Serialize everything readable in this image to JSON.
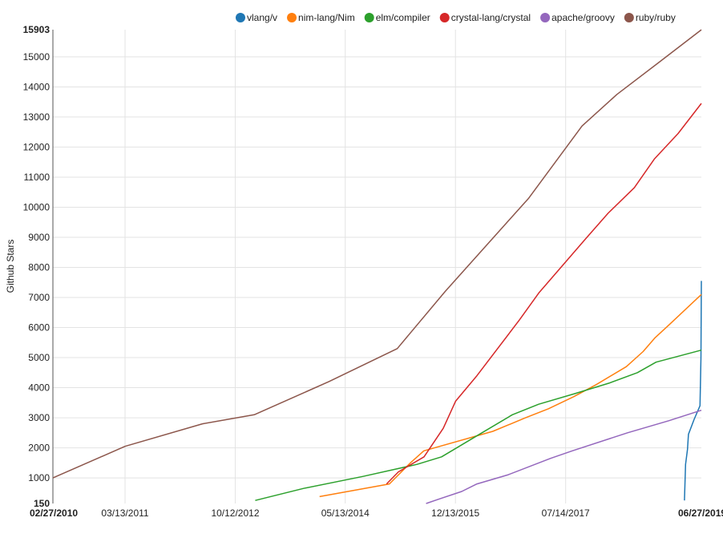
{
  "chart_data": {
    "type": "line",
    "xlabel": "",
    "ylabel": "Github Stars",
    "ylim": [
      150,
      15903
    ],
    "xlim": [
      "2010-02-27",
      "2019-06-27"
    ],
    "y_ticks": [
      {
        "value": 150,
        "label": "150",
        "bold": true
      },
      {
        "value": 1000,
        "label": "1000"
      },
      {
        "value": 2000,
        "label": "2000"
      },
      {
        "value": 3000,
        "label": "3000"
      },
      {
        "value": 4000,
        "label": "4000"
      },
      {
        "value": 5000,
        "label": "5000"
      },
      {
        "value": 6000,
        "label": "6000"
      },
      {
        "value": 7000,
        "label": "7000"
      },
      {
        "value": 8000,
        "label": "8000"
      },
      {
        "value": 9000,
        "label": "9000"
      },
      {
        "value": 10000,
        "label": "10000"
      },
      {
        "value": 11000,
        "label": "11000"
      },
      {
        "value": 12000,
        "label": "12000"
      },
      {
        "value": 13000,
        "label": "13000"
      },
      {
        "value": 14000,
        "label": "14000"
      },
      {
        "value": 15000,
        "label": "15000"
      },
      {
        "value": 15903,
        "label": "15903",
        "bold": true
      }
    ],
    "x_ticks": [
      {
        "value": "2010-02-27",
        "label": "02/27/2010",
        "bold": true
      },
      {
        "value": "2011-03-13",
        "label": "03/13/2011"
      },
      {
        "value": "2012-10-12",
        "label": "10/12/2012"
      },
      {
        "value": "2014-05-13",
        "label": "05/13/2014"
      },
      {
        "value": "2015-12-13",
        "label": "12/13/2015"
      },
      {
        "value": "2017-07-14",
        "label": "07/14/2017"
      },
      {
        "value": "2019-06-27",
        "label": "06/27/2019",
        "bold": true
      }
    ],
    "grid": true,
    "legend_position": "top",
    "series": [
      {
        "name": "vlang/v",
        "color": "#1f77b4",
        "points": [
          [
            "2019-03-30",
            250
          ],
          [
            "2019-04-05",
            1450
          ],
          [
            "2019-04-15",
            1950
          ],
          [
            "2019-04-20",
            2450
          ],
          [
            "2019-05-20",
            2950
          ],
          [
            "2019-06-20",
            3400
          ],
          [
            "2019-06-25",
            5000
          ],
          [
            "2019-06-27",
            7550
          ]
        ]
      },
      {
        "name": "nim-lang/Nim",
        "color": "#ff7f0e",
        "points": [
          [
            "2013-12-29",
            380
          ],
          [
            "2014-12-31",
            800
          ],
          [
            "2015-04-20",
            1500
          ],
          [
            "2015-06-30",
            1900
          ],
          [
            "2016-06-26",
            2550
          ],
          [
            "2016-12-15",
            3000
          ],
          [
            "2017-04-15",
            3300
          ],
          [
            "2017-08-25",
            3700
          ],
          [
            "2017-12-21",
            4100
          ],
          [
            "2018-05-29",
            4700
          ],
          [
            "2018-08-25",
            5200
          ],
          [
            "2018-10-25",
            5650
          ],
          [
            "2019-01-10",
            6100
          ],
          [
            "2019-06-27",
            7100
          ]
        ]
      },
      {
        "name": "elm/compiler",
        "color": "#2ca02c",
        "points": [
          [
            "2013-01-25",
            250
          ],
          [
            "2013-10-06",
            650
          ],
          [
            "2014-08-15",
            1050
          ],
          [
            "2015-05-25",
            1450
          ],
          [
            "2015-10-01",
            1700
          ],
          [
            "2016-04-17",
            2450
          ],
          [
            "2016-10-07",
            3100
          ],
          [
            "2017-02-22",
            3450
          ],
          [
            "2017-08-29",
            3800
          ],
          [
            "2018-02-27",
            4150
          ],
          [
            "2018-07-26",
            4500
          ],
          [
            "2018-11-01",
            4850
          ],
          [
            "2019-06-27",
            5250
          ]
        ]
      },
      {
        "name": "crystal-lang/crystal",
        "color": "#d62728",
        "points": [
          [
            "2014-12-16",
            800
          ],
          [
            "2015-02-16",
            1200
          ],
          [
            "2015-07-01",
            1700
          ],
          [
            "2015-10-10",
            2650
          ],
          [
            "2015-12-14",
            3550
          ],
          [
            "2016-04-04",
            4400
          ],
          [
            "2016-11-13",
            6250
          ],
          [
            "2017-02-23",
            7150
          ],
          [
            "2017-10-27",
            8950
          ],
          [
            "2018-02-22",
            9800
          ],
          [
            "2018-07-10",
            10650
          ],
          [
            "2018-10-23",
            11600
          ],
          [
            "2019-02-25",
            12450
          ],
          [
            "2019-06-27",
            13450
          ]
        ]
      },
      {
        "name": "apache/groovy",
        "color": "#9467bd",
        "points": [
          [
            "2015-07-12",
            150
          ],
          [
            "2015-09-18",
            300
          ],
          [
            "2016-01-15",
            550
          ],
          [
            "2016-04-04",
            800
          ],
          [
            "2016-09-12",
            1100
          ],
          [
            "2017-04-26",
            1650
          ],
          [
            "2017-08-18",
            1900
          ],
          [
            "2018-06-04",
            2500
          ],
          [
            "2019-01-06",
            2900
          ],
          [
            "2019-06-27",
            3250
          ]
        ]
      },
      {
        "name": "ruby/ruby",
        "color": "#8c564b",
        "points": [
          [
            "2010-02-27",
            1000
          ],
          [
            "2011-03-13",
            2050
          ],
          [
            "2012-04-23",
            2800
          ],
          [
            "2013-01-20",
            3100
          ],
          [
            "2014-02-15",
            4200
          ],
          [
            "2015-02-10",
            5300
          ],
          [
            "2015-10-20",
            7200
          ],
          [
            "2017-01-01",
            10300
          ],
          [
            "2017-10-08",
            12700
          ],
          [
            "2018-04-09",
            13750
          ],
          [
            "2018-11-13",
            14800
          ],
          [
            "2019-06-27",
            15900
          ]
        ]
      }
    ]
  }
}
